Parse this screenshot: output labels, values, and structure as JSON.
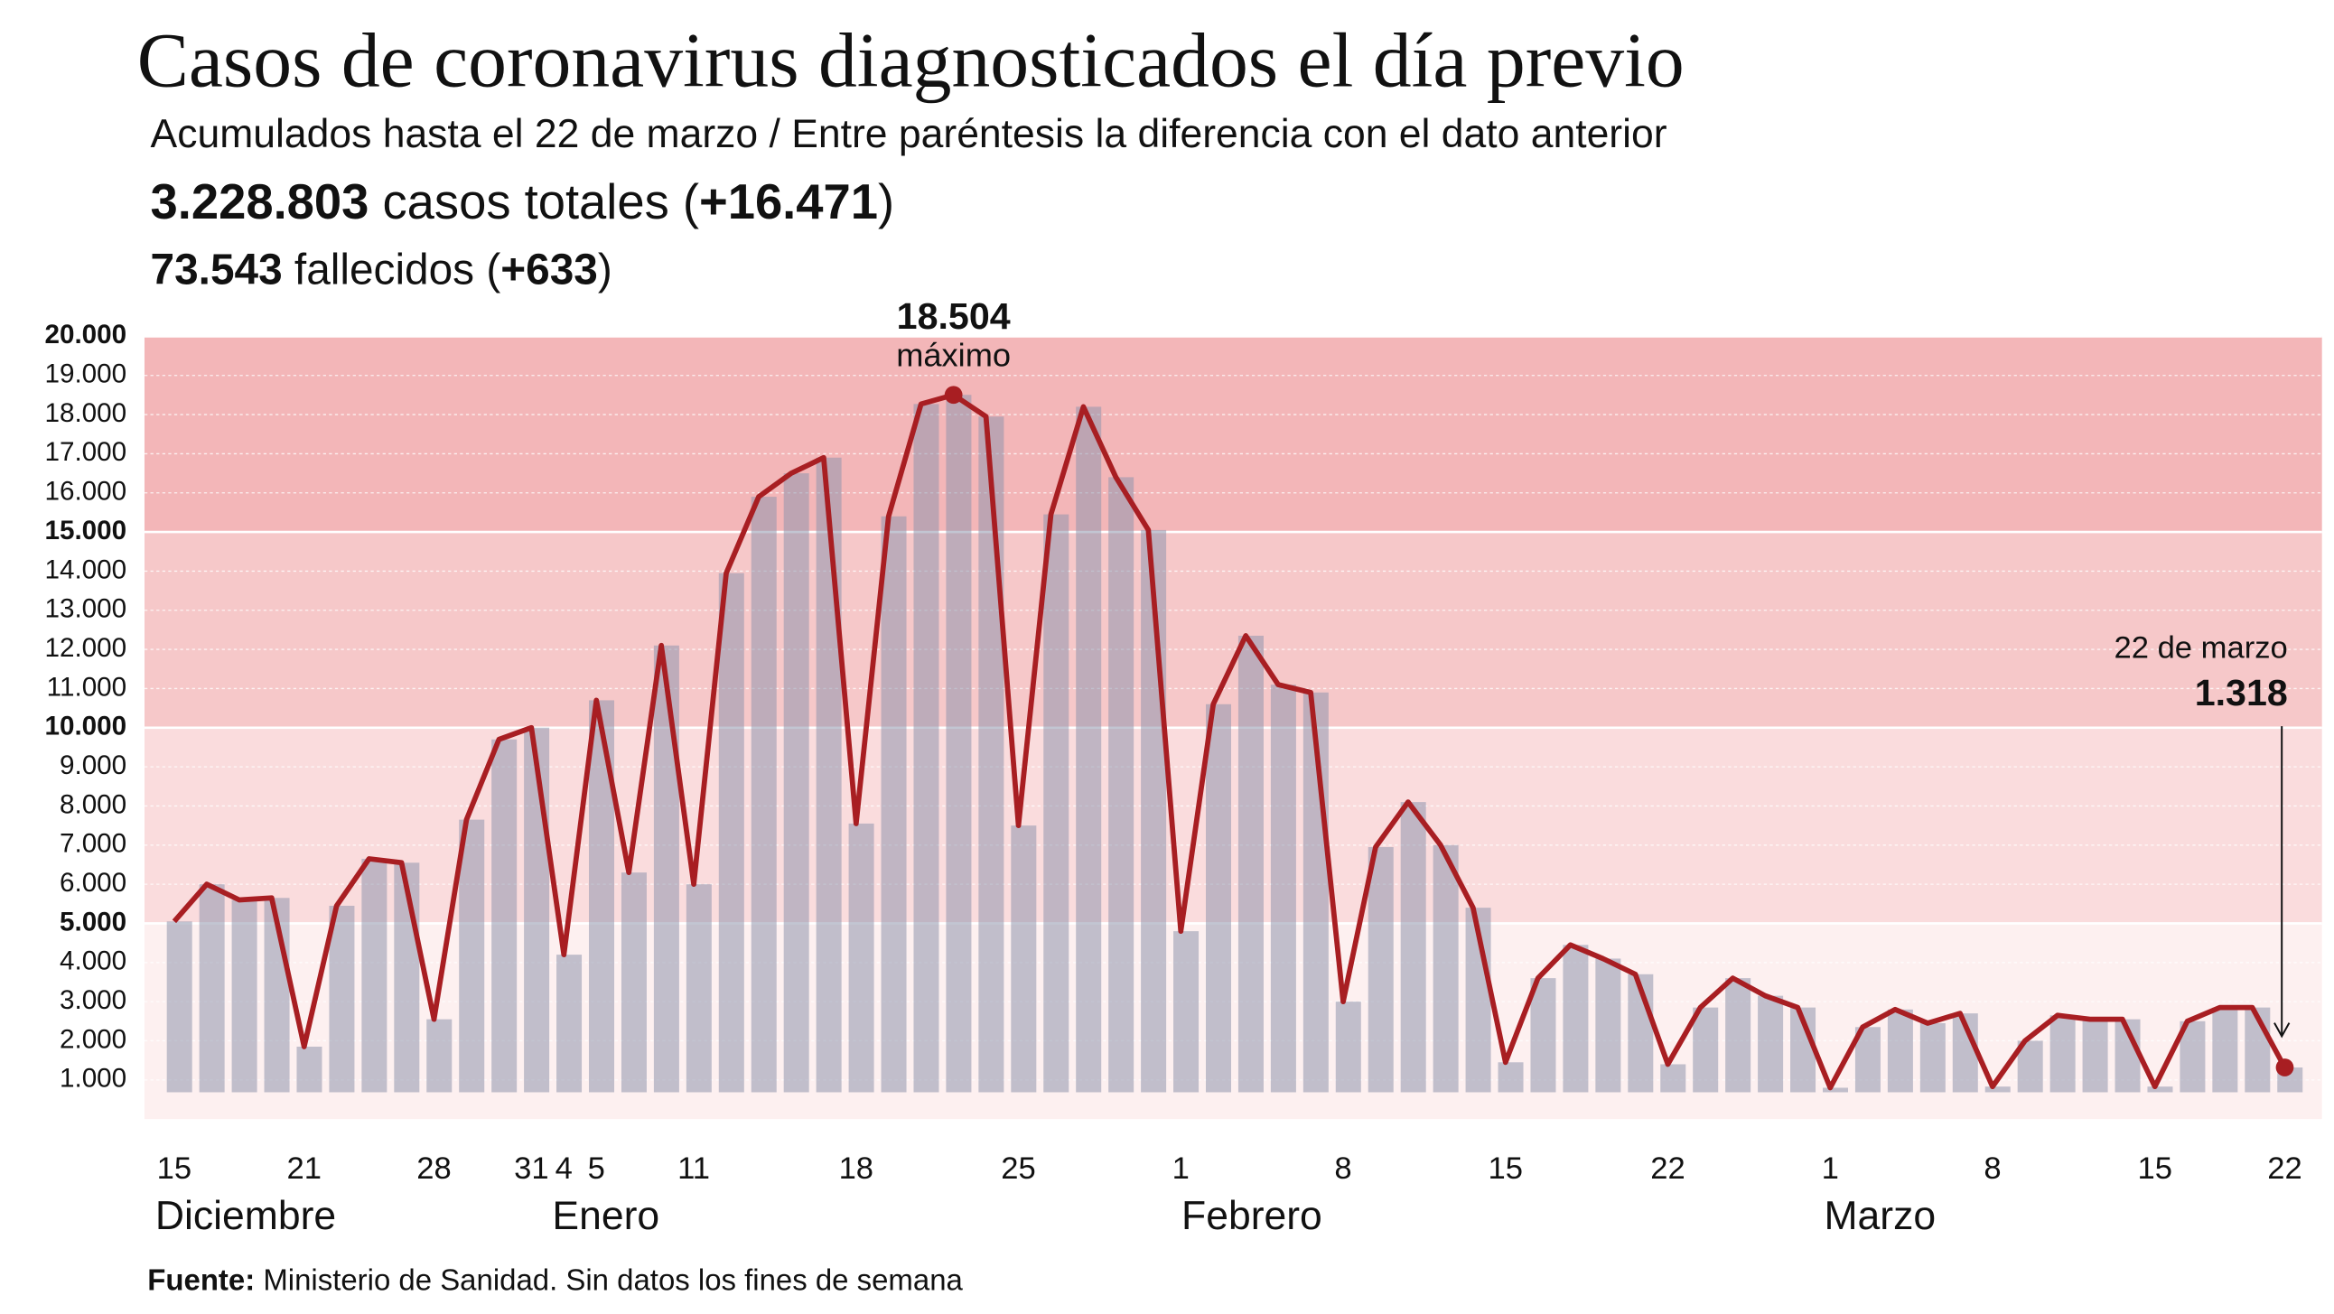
{
  "header": {
    "title": "Casos de coronavirus diagnosticados el día previo",
    "subtitle": "Acumulados hasta el 22 de marzo / Entre paréntesis la diferencia con el dato anterior",
    "cases": [
      "3.228.803",
      " casos totales (",
      "+16.471",
      ")"
    ],
    "deaths": [
      "73.543",
      " fallecidos (",
      "+633",
      ")"
    ]
  },
  "chart_data": {
    "type": "bar-line",
    "categories": [
      "15",
      null,
      null,
      null,
      "21",
      null,
      null,
      null,
      "28",
      null,
      null,
      "31",
      "4",
      "5",
      null,
      null,
      "11",
      null,
      null,
      null,
      null,
      "18",
      null,
      null,
      null,
      null,
      "25",
      null,
      null,
      null,
      null,
      "1",
      null,
      null,
      null,
      null,
      "8",
      null,
      null,
      null,
      null,
      "15",
      null,
      null,
      null,
      null,
      "22",
      null,
      null,
      null,
      null,
      "1",
      null,
      null,
      null,
      null,
      "8",
      null,
      null,
      null,
      null,
      "15",
      null,
      null,
      null,
      "22"
    ],
    "months": [
      "Diciembre",
      "Enero",
      "Febrero",
      "Marzo"
    ],
    "values": [
      5050,
      6000,
      5600,
      5650,
      1850,
      5450,
      6650,
      6550,
      2550,
      7650,
      9700,
      10000,
      4200,
      10700,
      6300,
      12100,
      6000,
      13950,
      15900,
      16500,
      16900,
      7550,
      15400,
      18270,
      18504,
      17950,
      7500,
      15450,
      18200,
      16400,
      15050,
      4800,
      10600,
      12350,
      11100,
      10900,
      3000,
      6950,
      8100,
      7000,
      5400,
      1450,
      3600,
      4450,
      4100,
      3700,
      1400,
      2850,
      3600,
      3150,
      2850,
      800,
      2350,
      2800,
      2450,
      2700,
      830,
      2000,
      2650,
      2550,
      2550,
      830,
      2500,
      2850,
      2850,
      1318
    ],
    "line_color": "#a81e22",
    "bar_color": "#8f96ad",
    "band_colors": [
      "#fdf0f0",
      "#fadcdd",
      "#f6c8c9",
      "#f3b6b8"
    ],
    "ylim": [
      0,
      20000
    ],
    "yticks": [
      {
        "value": 1000,
        "label": "1.000"
      },
      {
        "value": 2000,
        "label": "2.000"
      },
      {
        "value": 3000,
        "label": "3.000"
      },
      {
        "value": 4000,
        "label": "4.000"
      },
      {
        "value": 5000,
        "label": "5.000"
      },
      {
        "value": 6000,
        "label": "6.000"
      },
      {
        "value": 7000,
        "label": "7.000"
      },
      {
        "value": 8000,
        "label": "8.000"
      },
      {
        "value": 9000,
        "label": "9.000"
      },
      {
        "value": 10000,
        "label": "10.000"
      },
      {
        "value": 11000,
        "label": "11.000"
      },
      {
        "value": 12000,
        "label": "12.000"
      },
      {
        "value": 13000,
        "label": "13.000"
      },
      {
        "value": 14000,
        "label": "14.000"
      },
      {
        "value": 15000,
        "label": "15.000"
      },
      {
        "value": 16000,
        "label": "16.000"
      },
      {
        "value": 17000,
        "label": "17.000"
      },
      {
        "value": 18000,
        "label": "18.000"
      },
      {
        "value": 19000,
        "label": "19.000"
      },
      {
        "value": 20000,
        "label": "20.000"
      }
    ],
    "annotations": [
      {
        "label": "18.504",
        "note": "máximo"
      },
      {
        "note": "22 de marzo",
        "label": "1.318"
      }
    ],
    "source": [
      "Fuente:",
      " Ministerio de Sanidad. Sin datos los fines de semana"
    ]
  }
}
